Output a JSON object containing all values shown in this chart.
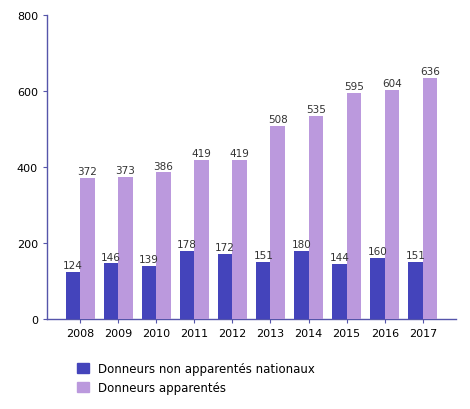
{
  "years": [
    2008,
    2009,
    2010,
    2011,
    2012,
    2013,
    2014,
    2015,
    2016,
    2017
  ],
  "non_apparentes": [
    124,
    146,
    139,
    178,
    172,
    151,
    180,
    144,
    160,
    151
  ],
  "apparentes": [
    372,
    373,
    386,
    419,
    419,
    508,
    535,
    595,
    604,
    636
  ],
  "color_non_apparentes": "#4444BB",
  "color_apparentes": "#BB99DD",
  "ylim": [
    0,
    800
  ],
  "yticks": [
    0,
    200,
    400,
    600,
    800
  ],
  "label_non_apparentes": "Donneurs non apparentés nationaux",
  "label_apparentes": "Donneurs apparentés",
  "bar_width": 0.38,
  "label_fontsize": 7.5,
  "tick_fontsize": 8,
  "legend_fontsize": 8.5
}
